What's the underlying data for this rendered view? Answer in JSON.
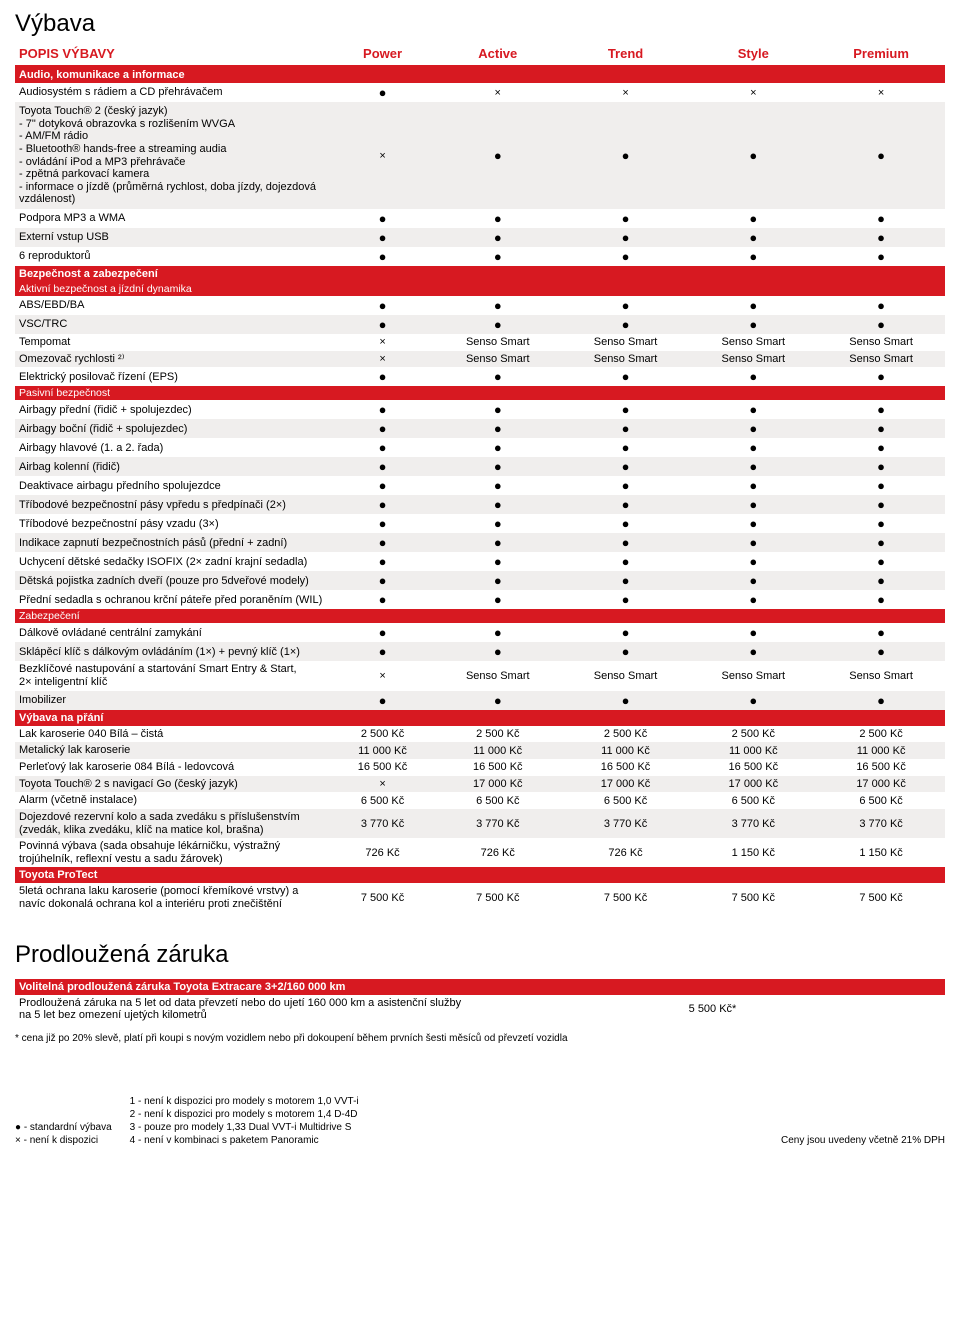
{
  "title": "Výbava",
  "header": {
    "label": "POPIS VÝBAVY",
    "cols": [
      "Power",
      "Active",
      "Trend",
      "Style",
      "Premium"
    ]
  },
  "glyph_dot": "●",
  "glyph_x": "×",
  "sections": [
    {
      "type": "redbar",
      "label": "Audio, komunikace a informace"
    },
    {
      "row": {
        "label": "Audiosystém s rádiem a CD přehrávačem",
        "cells": [
          "dot",
          "x",
          "x",
          "x",
          "x"
        ],
        "alt": false
      }
    },
    {
      "row": {
        "label": "Toyota Touch® 2 (český jazyk)\n- 7\" dotyková obrazovka s rozlišením WVGA\n- AM/FM rádio\n- Bluetooth® hands-free a streaming audia\n- ovládání iPod a MP3 přehrávače\n- zpětná parkovací kamera\n- informace o jízdě (průměrná rychlost, doba jízdy, dojezdová\n  vzdálenost)",
        "cells": [
          "x",
          "dot",
          "dot",
          "dot",
          "dot"
        ],
        "alt": true,
        "tall": true
      }
    },
    {
      "row": {
        "label": "Podpora MP3 a WMA",
        "cells": [
          "dot",
          "dot",
          "dot",
          "dot",
          "dot"
        ],
        "alt": false
      }
    },
    {
      "row": {
        "label": "Externí vstup USB",
        "cells": [
          "dot",
          "dot",
          "dot",
          "dot",
          "dot"
        ],
        "alt": true
      }
    },
    {
      "row": {
        "label": "6 reproduktorů",
        "cells": [
          "dot",
          "dot",
          "dot",
          "dot",
          "dot"
        ],
        "alt": false
      }
    },
    {
      "type": "redbar",
      "label": "Bezpečnost a zabezpečení"
    },
    {
      "type": "subred",
      "label": "Aktivní bezpečnost a jízdní dynamika"
    },
    {
      "row": {
        "label": "ABS/EBD/BA",
        "cells": [
          "dot",
          "dot",
          "dot",
          "dot",
          "dot"
        ],
        "alt": false
      }
    },
    {
      "row": {
        "label": "VSC/TRC",
        "cells": [
          "dot",
          "dot",
          "dot",
          "dot",
          "dot"
        ],
        "alt": true
      }
    },
    {
      "row": {
        "label": "Tempomat",
        "cells": [
          "x",
          "Senso Smart",
          "Senso Smart",
          "Senso Smart",
          "Senso Smart"
        ],
        "alt": false
      }
    },
    {
      "row": {
        "label": "Omezovač rychlosti ²⁾",
        "cells": [
          "x",
          "Senso Smart",
          "Senso Smart",
          "Senso Smart",
          "Senso Smart"
        ],
        "alt": true
      }
    },
    {
      "row": {
        "label": "Elektrický posilovač řízení (EPS)",
        "cells": [
          "dot",
          "dot",
          "dot",
          "dot",
          "dot"
        ],
        "alt": false
      }
    },
    {
      "type": "subred",
      "label": "Pasivní bezpečnost"
    },
    {
      "row": {
        "label": "Airbagy přední (řidič + spolujezdec)",
        "cells": [
          "dot",
          "dot",
          "dot",
          "dot",
          "dot"
        ],
        "alt": false
      }
    },
    {
      "row": {
        "label": "Airbagy boční (řidič + spolujezdec)",
        "cells": [
          "dot",
          "dot",
          "dot",
          "dot",
          "dot"
        ],
        "alt": true
      }
    },
    {
      "row": {
        "label": "Airbagy hlavové (1. a 2. řada)",
        "cells": [
          "dot",
          "dot",
          "dot",
          "dot",
          "dot"
        ],
        "alt": false
      }
    },
    {
      "row": {
        "label": "Airbag kolenní (řidič)",
        "cells": [
          "dot",
          "dot",
          "dot",
          "dot",
          "dot"
        ],
        "alt": true
      }
    },
    {
      "row": {
        "label": "Deaktivace airbagu předního spolujezdce",
        "cells": [
          "dot",
          "dot",
          "dot",
          "dot",
          "dot"
        ],
        "alt": false
      }
    },
    {
      "row": {
        "label": "Tříbodové bezpečnostní pásy vpředu s předpínači (2×)",
        "cells": [
          "dot",
          "dot",
          "dot",
          "dot",
          "dot"
        ],
        "alt": true
      }
    },
    {
      "row": {
        "label": "Tříbodové bezpečnostní pásy vzadu (3×)",
        "cells": [
          "dot",
          "dot",
          "dot",
          "dot",
          "dot"
        ],
        "alt": false
      }
    },
    {
      "row": {
        "label": "Indikace zapnutí bezpečnostních pásů (přední + zadní)",
        "cells": [
          "dot",
          "dot",
          "dot",
          "dot",
          "dot"
        ],
        "alt": true
      }
    },
    {
      "row": {
        "label": "Uchycení dětské sedačky ISOFIX (2× zadní krajní sedadla)",
        "cells": [
          "dot",
          "dot",
          "dot",
          "dot",
          "dot"
        ],
        "alt": false
      }
    },
    {
      "row": {
        "label": "Dětská pojistka zadních dveří (pouze pro 5dveřové modely)",
        "cells": [
          "dot",
          "dot",
          "dot",
          "dot",
          "dot"
        ],
        "alt": true
      }
    },
    {
      "row": {
        "label": "Přední sedadla s ochranou krční páteře před poraněním (WIL)",
        "cells": [
          "dot",
          "dot",
          "dot",
          "dot",
          "dot"
        ],
        "alt": false
      }
    },
    {
      "type": "subred",
      "label": "Zabezpečení"
    },
    {
      "row": {
        "label": "Dálkově ovládané centrální zamykání",
        "cells": [
          "dot",
          "dot",
          "dot",
          "dot",
          "dot"
        ],
        "alt": false
      }
    },
    {
      "row": {
        "label": "Sklápěcí klíč s dálkovým ovládáním (1×) + pevný klíč (1×)",
        "cells": [
          "dot",
          "dot",
          "dot",
          "dot",
          "dot"
        ],
        "alt": true
      }
    },
    {
      "row": {
        "label": "Bezklíčové nastupování a startování Smart Entry & Start,\n2× inteligentní klíč",
        "cells": [
          "x",
          "Senso Smart",
          "Senso Smart",
          "Senso Smart",
          "Senso Smart"
        ],
        "alt": false
      }
    },
    {
      "row": {
        "label": "Imobilizer",
        "cells": [
          "dot",
          "dot",
          "dot",
          "dot",
          "dot"
        ],
        "alt": true
      }
    },
    {
      "type": "redbar",
      "label": "Výbava na přání"
    },
    {
      "row": {
        "label": "Lak karoserie 040 Bílá – čistá",
        "cells": [
          "2 500 Kč",
          "2 500 Kč",
          "2 500 Kč",
          "2 500 Kč",
          "2 500 Kč"
        ],
        "alt": false
      }
    },
    {
      "row": {
        "label": "Metalický lak karoserie",
        "cells": [
          "11 000 Kč",
          "11 000 Kč",
          "11 000 Kč",
          "11 000 Kč",
          "11 000 Kč"
        ],
        "alt": true
      }
    },
    {
      "row": {
        "label": "Perleťový lak karoserie 084 Bílá - ledovcová",
        "cells": [
          "16 500 Kč",
          "16 500 Kč",
          "16 500 Kč",
          "16 500 Kč",
          "16 500 Kč"
        ],
        "alt": false
      }
    },
    {
      "row": {
        "label": "Toyota Touch® 2 s navigací Go (český jazyk)",
        "cells": [
          "x",
          "17 000 Kč",
          "17 000 Kč",
          "17 000 Kč",
          "17 000 Kč"
        ],
        "alt": true
      }
    },
    {
      "row": {
        "label": "Alarm (včetně instalace)",
        "cells": [
          "6 500 Kč",
          "6 500 Kč",
          "6 500 Kč",
          "6 500 Kč",
          "6 500 Kč"
        ],
        "alt": false
      }
    },
    {
      "row": {
        "label": "Dojezdové rezervní kolo a sada zvedáku s příslušenstvím (zvedák, klika zvedáku, klíč na matice kol, brašna)",
        "cells": [
          "3 770 Kč",
          "3 770 Kč",
          "3 770 Kč",
          "3 770 Kč",
          "3 770 Kč"
        ],
        "alt": true
      }
    },
    {
      "row": {
        "label": "Povinná výbava (sada obsahuje lékárničku, výstražný trojúhelník, reflexní vestu a sadu žárovek)",
        "cells": [
          "726 Kč",
          "726 Kč",
          "726 Kč",
          "1 150 Kč",
          "1 150 Kč"
        ],
        "alt": false
      }
    },
    {
      "type": "redbar",
      "label": "Toyota ProTect"
    },
    {
      "row": {
        "label": "5letá ochrana laku karoserie (pomocí křemíkové vrstvy) a navíc dokonalá ochrana kol a interiéru proti znečištění",
        "cells": [
          "7 500 Kč",
          "7 500 Kč",
          "7 500 Kč",
          "7 500 Kč",
          "7 500 Kč"
        ],
        "alt": false
      }
    }
  ],
  "warranty": {
    "title": "Prodloužená záruka",
    "redbar": "Volitelná prodloužená záruka Toyota Extracare 3+2/160 000 km",
    "row": {
      "label": "Prodloužená záruka na 5 let od data převzetí nebo do ujetí 160 000 km a asistenční služby na 5 let bez omezení ujetých kilometrů",
      "price": "5 500 Kč*"
    },
    "note": "* cena již po 20% slevě, platí při koupi s novým vozidlem nebo při dokoupení během prvních šesti měsíců od převzetí vozidla"
  },
  "footer": {
    "legend": [
      "● - standardní výbava",
      "× - není k dispozici"
    ],
    "notes": [
      "1 - není k dispozici pro modely s motorem 1,0 VVT-i",
      "2 - není k dispozici pro modely s motorem 1,4 D-4D",
      "3 - pouze pro modely 1,33 Dual VVT-i Multidrive S",
      "4 - není v kombinaci s paketem Panoramic"
    ],
    "right": "Ceny jsou uvedeny včetně 21% DPH"
  }
}
